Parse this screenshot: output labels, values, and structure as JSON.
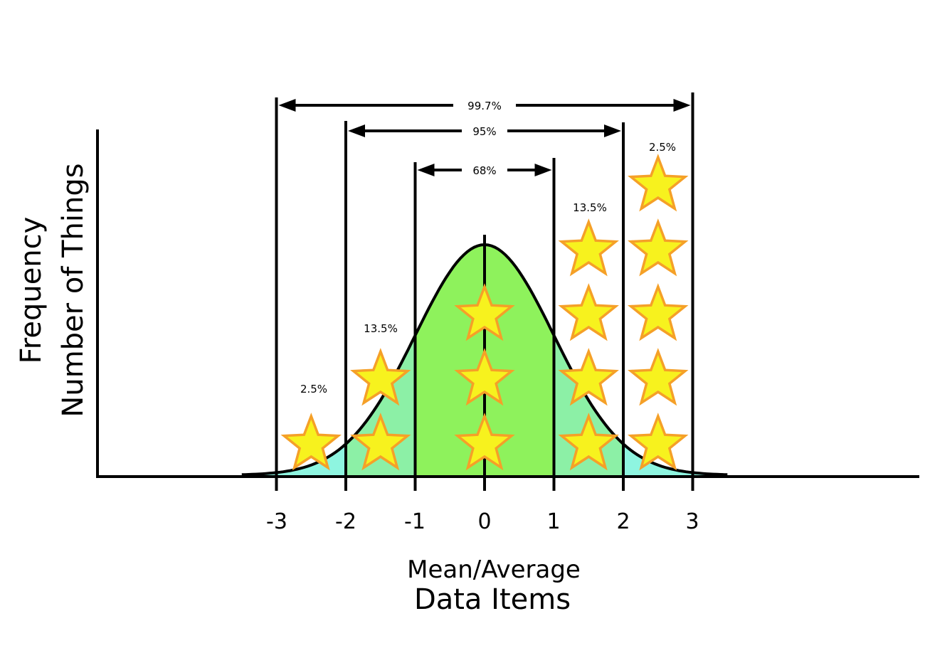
{
  "diagram": {
    "y_axis_title": "Frequency",
    "y_axis_subtitle": "Number of Things",
    "x_axis_title": "Mean/Average",
    "x_axis_subtitle": "Data Items",
    "x_ticks": [
      "-3",
      "-2",
      "-1",
      "0",
      "1",
      "2",
      "3"
    ],
    "span_labels": {
      "one_sigma": "68%",
      "two_sigma": "95%",
      "three_sigma": "99.7%"
    },
    "region_labels": {
      "left_tail": "2.5%",
      "left_band": "13.5%",
      "right_band": "13.5%",
      "right_tail": "2.5%"
    },
    "star_columns": [
      {
        "position": -2.5,
        "count": 1
      },
      {
        "position": -1.5,
        "count": 2
      },
      {
        "position": 0,
        "count": 3
      },
      {
        "position": 1.5,
        "count": 4
      },
      {
        "position": 2.5,
        "count": 5
      }
    ],
    "colors": {
      "center_fill": "#8ef25c",
      "band_fill": "#8cf0a6",
      "tail_fill": "#8ef5e0",
      "star_fill": "#f7f21e",
      "star_stroke": "#f5a028",
      "line": "#000000"
    }
  }
}
